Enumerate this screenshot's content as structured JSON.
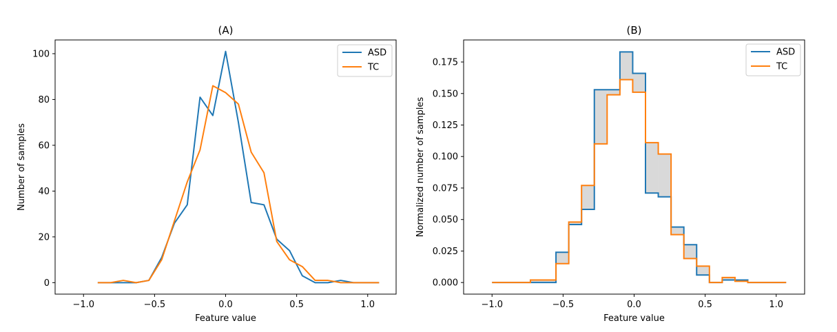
{
  "colors": {
    "asd": "#1f77b4",
    "tc": "#ff7f0e",
    "fill": "#d9d9d9"
  },
  "chart_data": [
    {
      "type": "line",
      "title": "(A)",
      "xlabel": "Feature value",
      "ylabel": "Number of samples",
      "xlim": [
        -1.2,
        1.2
      ],
      "ylim": [
        -5,
        106
      ],
      "xticks": [
        -1.0,
        -0.5,
        0.0,
        0.5,
        1.0
      ],
      "xtick_labels": [
        "−1.0",
        "−0.5",
        "0.0",
        "0.5",
        "1.0"
      ],
      "yticks": [
        0,
        20,
        40,
        60,
        80,
        100
      ],
      "ytick_labels": [
        "0",
        "20",
        "40",
        "60",
        "80",
        "100"
      ],
      "legend": {
        "placement": "top-right",
        "entries": [
          "ASD",
          "TC"
        ]
      },
      "series": [
        {
          "name": "ASD",
          "x": [
            -0.9,
            -0.81,
            -0.72,
            -0.63,
            -0.54,
            -0.45,
            -0.36,
            -0.27,
            -0.18,
            -0.09,
            0.0,
            0.09,
            0.18,
            0.27,
            0.36,
            0.45,
            0.54,
            0.63,
            0.72,
            0.81,
            0.9,
            0.99,
            1.08
          ],
          "values": [
            0,
            0,
            0,
            0,
            1,
            11,
            26,
            34,
            81,
            73,
            101,
            70,
            35,
            34,
            19,
            14,
            3,
            0,
            0,
            1,
            0,
            0,
            0
          ]
        },
        {
          "name": "TC",
          "x": [
            -0.9,
            -0.81,
            -0.72,
            -0.63,
            -0.54,
            -0.45,
            -0.36,
            -0.27,
            -0.18,
            -0.09,
            0.0,
            0.09,
            0.18,
            0.27,
            0.36,
            0.45,
            0.54,
            0.63,
            0.72,
            0.81,
            0.9,
            0.99,
            1.08
          ],
          "values": [
            0,
            0,
            1,
            0,
            1,
            10,
            27,
            44,
            58,
            86,
            83,
            78,
            57,
            48,
            18,
            10,
            7,
            1,
            1,
            0,
            0,
            0,
            0
          ]
        }
      ]
    },
    {
      "type": "step",
      "title": "(B)",
      "xlabel": "Feature value",
      "ylabel": "Normalized number of samples",
      "xlim": [
        -1.2,
        1.2
      ],
      "ylim": [
        -0.0092,
        0.1925
      ],
      "xticks": [
        -1.0,
        -0.5,
        0.0,
        0.5,
        1.0
      ],
      "xtick_labels": [
        "−1.0",
        "−0.5",
        "0.0",
        "0.5",
        "1.0"
      ],
      "yticks": [
        0,
        0.025,
        0.05,
        0.075,
        0.1,
        0.125,
        0.15,
        0.175
      ],
      "ytick_labels": [
        "0.000",
        "0.025",
        "0.050",
        "0.075",
        "0.100",
        "0.125",
        "0.150",
        "0.175"
      ],
      "legend": {
        "placement": "top-right",
        "entries": [
          "ASD",
          "TC"
        ]
      },
      "bin_edges": [
        -1.0,
        -0.91,
        -0.82,
        -0.73,
        -0.64,
        -0.55,
        -0.46,
        -0.37,
        -0.28,
        -0.19,
        -0.1,
        -0.01,
        0.08,
        0.17,
        0.26,
        0.35,
        0.44,
        0.53,
        0.62,
        0.71,
        0.8,
        0.89,
        0.98,
        1.07
      ],
      "series": [
        {
          "name": "ASD",
          "values": [
            0,
            0,
            0,
            0,
            0,
            0.024,
            0.046,
            0.058,
            0.153,
            0.153,
            0.183,
            0.166,
            0.071,
            0.068,
            0.044,
            0.03,
            0.006,
            0,
            0.002,
            0.002,
            0,
            0,
            0
          ]
        },
        {
          "name": "TC",
          "values": [
            0,
            0,
            0,
            0.002,
            0.002,
            0.015,
            0.048,
            0.077,
            0.11,
            0.149,
            0.161,
            0.151,
            0.111,
            0.102,
            0.038,
            0.019,
            0.013,
            0,
            0.004,
            0.001,
            0,
            0,
            0
          ]
        }
      ]
    }
  ]
}
